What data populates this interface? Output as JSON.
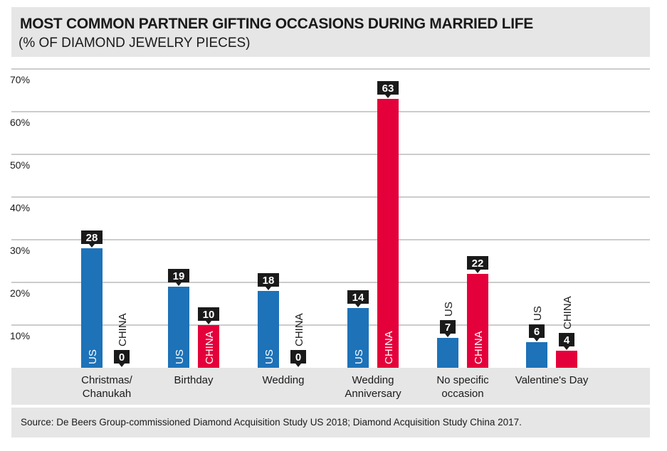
{
  "header": {
    "title": "MOST COMMON PARTNER GIFTING OCCASIONS DURING MARRIED LIFE",
    "subtitle": "(% OF DIAMOND JEWELRY PIECES)"
  },
  "footer": {
    "source": "Source: De Beers Group-commissioned Diamond Acquisition Study US 2018; Diamond Acquisition Study China 2017."
  },
  "colors": {
    "us": "#1d72b8",
    "china": "#e4003b",
    "label_box": "#1a1a1a",
    "grid": "#9a9a9a",
    "category_band": "#e6e6e6"
  },
  "chart_data": {
    "type": "bar",
    "categories": [
      [
        "Christmas/",
        "Chanukah"
      ],
      [
        "Birthday"
      ],
      [
        "Wedding"
      ],
      [
        "Wedding",
        "Anniversary"
      ],
      [
        "No specific",
        "occasion"
      ],
      [
        "Valentine's Day"
      ]
    ],
    "series": [
      {
        "name": "US",
        "values": [
          28,
          19,
          18,
          14,
          7,
          6
        ]
      },
      {
        "name": "CHINA",
        "values": [
          0,
          10,
          0,
          63,
          22,
          4
        ]
      }
    ],
    "y_ticks": [
      "10%",
      "20%",
      "30%",
      "40%",
      "50%",
      "60%",
      "70%"
    ],
    "ylim": [
      0,
      70
    ],
    "grid": true
  }
}
